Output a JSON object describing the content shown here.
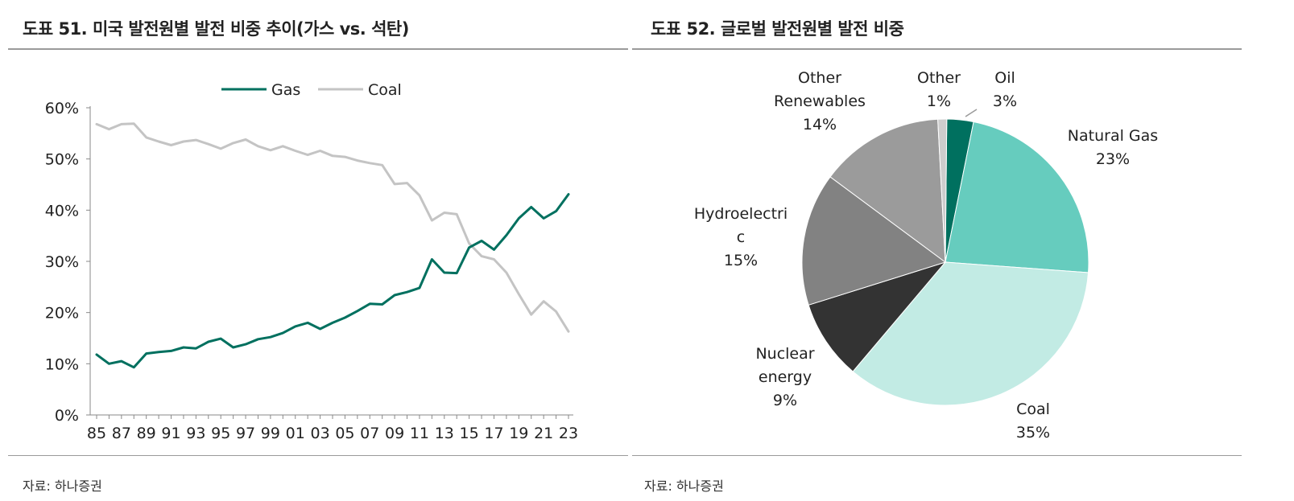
{
  "left": {
    "title": "도표 51. 미국 발전원별 발전 비중 추이(가스 vs. 석탄)",
    "source": "자료: 하나증권"
  },
  "right": {
    "title": "도표 52. 글로벌 발전원별 발전 비중",
    "source": "자료: 하나증권"
  },
  "chart_data": [
    {
      "type": "line",
      "title": "도표 51. 미국 발전원별 발전 비중 추이(가스 vs. 석탄)",
      "x": [
        85,
        86,
        87,
        88,
        89,
        90,
        91,
        92,
        93,
        94,
        95,
        96,
        97,
        98,
        99,
        100,
        101,
        102,
        103,
        104,
        105,
        106,
        107,
        108,
        109,
        110,
        111,
        112,
        113,
        114,
        115,
        116,
        117,
        118,
        119,
        120,
        121,
        122,
        123
      ],
      "xtick_labels": [
        "85",
        "87",
        "89",
        "91",
        "93",
        "95",
        "97",
        "99",
        "01",
        "03",
        "05",
        "07",
        "09",
        "11",
        "13",
        "15",
        "17",
        "19",
        "21",
        "23"
      ],
      "ytick_labels": [
        "0%",
        "10%",
        "20%",
        "30%",
        "40%",
        "50%",
        "60%"
      ],
      "ylim": [
        0,
        60
      ],
      "legend_position": "top",
      "series": [
        {
          "name": "Gas",
          "color": "#00705f",
          "values": [
            11.8,
            10.0,
            10.5,
            9.3,
            12.0,
            12.3,
            12.5,
            13.2,
            13.0,
            14.3,
            14.9,
            13.2,
            13.8,
            14.8,
            15.2,
            16.0,
            17.3,
            18.0,
            16.8,
            18.0,
            19.0,
            20.3,
            21.7,
            21.6,
            23.4,
            24.0,
            24.8,
            30.4,
            27.8,
            27.7,
            32.7,
            34.0,
            32.3,
            35.1,
            38.4,
            40.6,
            38.4,
            39.8,
            43.1
          ]
        },
        {
          "name": "Coal",
          "color": "#c4c4c4",
          "values": [
            56.8,
            55.8,
            56.8,
            56.9,
            54.2,
            53.4,
            52.7,
            53.4,
            53.7,
            52.9,
            52.0,
            53.1,
            53.8,
            52.5,
            51.7,
            52.5,
            51.6,
            50.8,
            51.6,
            50.6,
            50.4,
            49.7,
            49.2,
            48.8,
            45.1,
            45.3,
            42.9,
            38.0,
            39.5,
            39.2,
            33.5,
            31.0,
            30.4,
            27.8,
            23.6,
            19.6,
            22.2,
            20.2,
            16.3
          ]
        }
      ]
    },
    {
      "type": "pie",
      "title": "도표 52. 글로벌 발전원별 발전 비중",
      "slices": [
        {
          "name": "Oil",
          "value": 3,
          "label_lines": [
            "Oil",
            "3%"
          ],
          "color": "#00705f"
        },
        {
          "name": "Natural Gas",
          "value": 23,
          "label_lines": [
            "Natural Gas",
            "23%"
          ],
          "color": "#66ccbe"
        },
        {
          "name": "Coal",
          "value": 35,
          "label_lines": [
            "Coal",
            "35%"
          ],
          "color": "#c2ebe4"
        },
        {
          "name": "Nuclear energy",
          "value": 9,
          "label_lines": [
            "Nuclear",
            "energy",
            "9%"
          ],
          "color": "#333333"
        },
        {
          "name": "Hydroelectric",
          "value": 15,
          "label_lines": [
            "Hydroelectri",
            "c",
            "15%"
          ],
          "color": "#828282"
        },
        {
          "name": "Other Renewables",
          "value": 14,
          "label_lines": [
            "Other",
            "Renewables",
            "14%"
          ],
          "color": "#9b9b9b"
        },
        {
          "name": "Other",
          "value": 1,
          "label_lines": [
            "Other",
            "1%"
          ],
          "color": "#cdcdcd"
        }
      ]
    }
  ]
}
